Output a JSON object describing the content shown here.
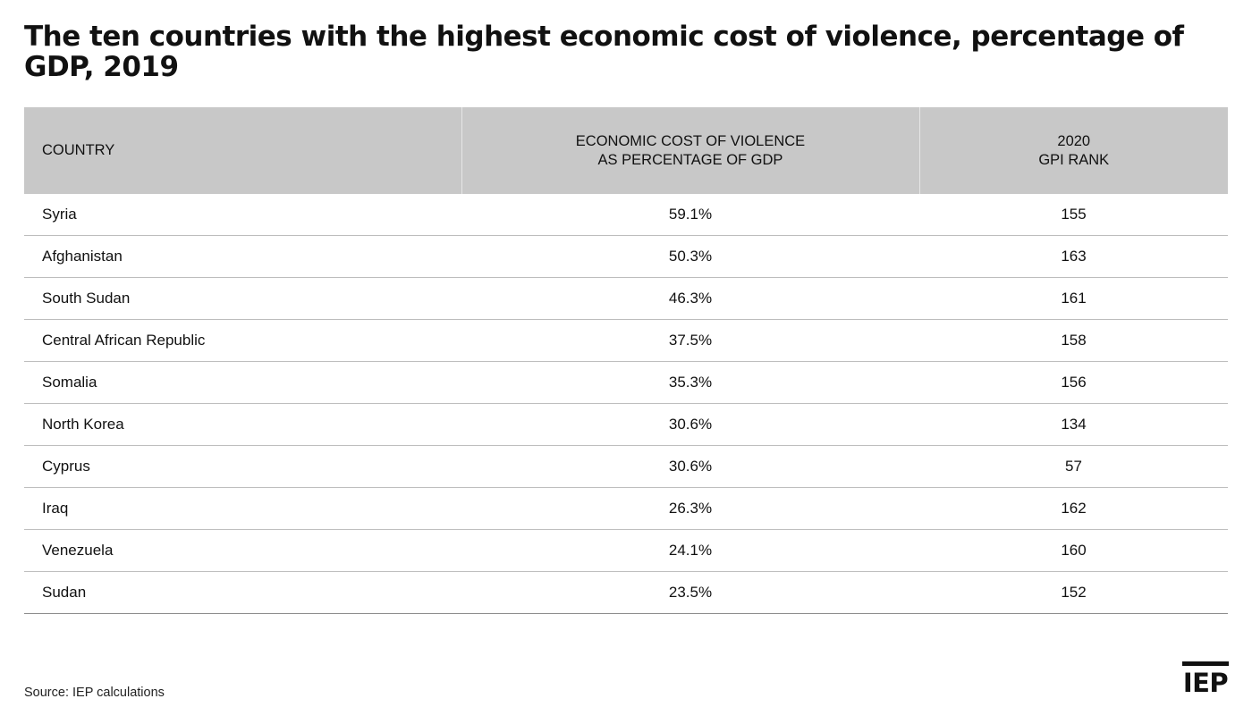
{
  "title": "The ten countries with the highest economic cost of violence, percentage of GDP, 2019",
  "table": {
    "headers": {
      "country": "COUNTRY",
      "cost_line1": "ECONOMIC COST OF VIOLENCE",
      "cost_line2": "AS PERCENTAGE OF GDP",
      "rank_line1": "2020",
      "rank_line2": "GPI RANK"
    },
    "rows": [
      {
        "country": "Syria",
        "cost": "59.1%",
        "rank": "155"
      },
      {
        "country": "Afghanistan",
        "cost": "50.3%",
        "rank": "163"
      },
      {
        "country": "South Sudan",
        "cost": "46.3%",
        "rank": "161"
      },
      {
        "country": "Central African Republic",
        "cost": "37.5%",
        "rank": "158"
      },
      {
        "country": "Somalia",
        "cost": "35.3%",
        "rank": "156"
      },
      {
        "country": "North Korea",
        "cost": "30.6%",
        "rank": "134"
      },
      {
        "country": "Cyprus",
        "cost": "30.6%",
        "rank": "57"
      },
      {
        "country": "Iraq",
        "cost": "26.3%",
        "rank": "162"
      },
      {
        "country": "Venezuela",
        "cost": "24.1%",
        "rank": "160"
      },
      {
        "country": "Sudan",
        "cost": "23.5%",
        "rank": "152"
      }
    ]
  },
  "source": "Source: IEP calculations",
  "logo": {
    "text": "IEP",
    "icon": "iep-logo"
  },
  "colors": {
    "header_background": "#c8c8c8",
    "row_divider": "#bdbdbd",
    "text": "#111111"
  }
}
